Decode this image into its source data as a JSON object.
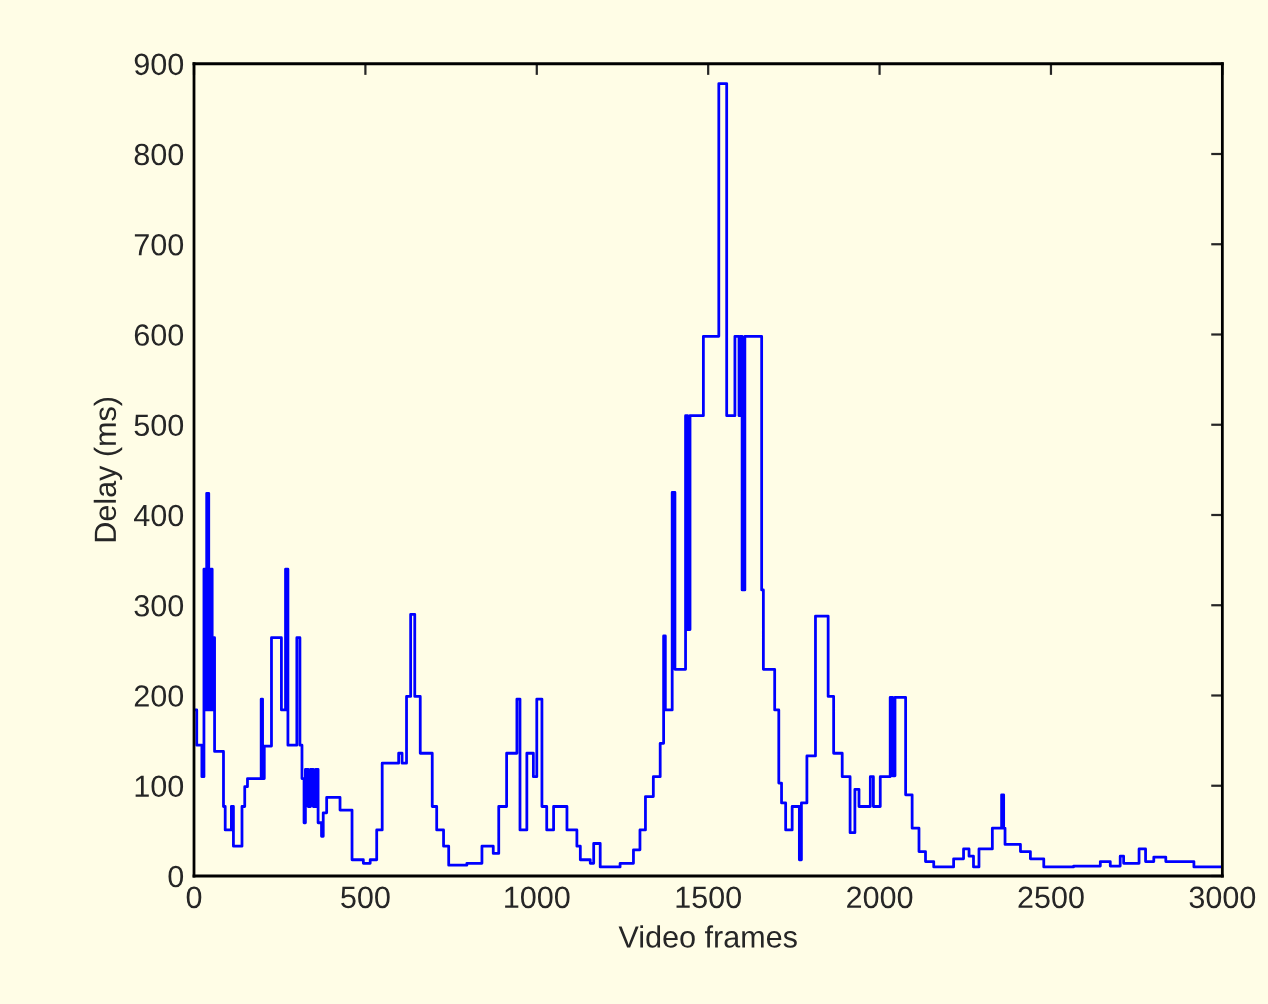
{
  "chart_data": {
    "type": "step",
    "xlabel": "Video frames",
    "ylabel": "Delay (ms)",
    "xlim": [
      0,
      3000
    ],
    "ylim": [
      0,
      900
    ],
    "xticks": [
      0,
      500,
      1000,
      1500,
      2000,
      2500,
      3000
    ],
    "yticks": [
      0,
      100,
      200,
      300,
      400,
      500,
      600,
      700,
      800,
      900
    ],
    "grid": false,
    "legend": false,
    "series": [
      {
        "color": "#0000ff",
        "x": [
          0,
          8,
          23,
          29,
          33,
          37,
          43,
          49,
          53,
          56,
          60,
          86,
          91,
          109,
          115,
          140,
          148,
          156,
          196,
          200,
          205,
          226,
          255,
          267,
          274,
          300,
          309,
          315,
          321,
          325,
          333,
          340,
          348,
          355,
          362,
          372,
          377,
          387,
          426,
          461,
          494,
          514,
          533,
          549,
          597,
          607,
          620,
          632,
          644,
          660,
          695,
          708,
          728,
          743,
          796,
          840,
          873,
          889,
          912,
          942,
          951,
          971,
          990,
          1000,
          1015,
          1029,
          1049,
          1088,
          1117,
          1127,
          1156,
          1166,
          1185,
          1243,
          1282,
          1301,
          1317,
          1340,
          1360,
          1370,
          1375,
          1395,
          1403,
          1434,
          1440,
          1447,
          1486,
          1531,
          1554,
          1578,
          1590,
          1594,
          1599,
          1607,
          1656,
          1661,
          1694,
          1706,
          1714,
          1726,
          1745,
          1766,
          1772,
          1788,
          1813,
          1850,
          1866,
          1891,
          1914,
          1928,
          1940,
          1973,
          1982,
          2002,
          2031,
          2038,
          2045,
          2076,
          2095,
          2115,
          2134,
          2158,
          2216,
          2245,
          2261,
          2274,
          2290,
          2329,
          2356,
          2362,
          2366,
          2411,
          2440,
          2479,
          2566,
          2644,
          2673,
          2702,
          2712,
          2757,
          2776,
          2800,
          2835,
          2917,
          3000
        ],
        "values": [
          184,
          145,
          110,
          340,
          184,
          424,
          184,
          340,
          184,
          264,
          138,
          77,
          51,
          77,
          33,
          77,
          99,
          108,
          196,
          108,
          144,
          264,
          184,
          340,
          145,
          264,
          145,
          108,
          59,
          118,
          77,
          118,
          77,
          118,
          59,
          44,
          70,
          87,
          73,
          18,
          14,
          18,
          51,
          125,
          136,
          125,
          199,
          290,
          199,
          136,
          77,
          51,
          33,
          12,
          14,
          33,
          25,
          77,
          136,
          196,
          51,
          136,
          110,
          196,
          77,
          51,
          77,
          51,
          33,
          18,
          14,
          36,
          10,
          14,
          29,
          51,
          88,
          110,
          147,
          266,
          184,
          425,
          229,
          510,
          273,
          510,
          598,
          878,
          510,
          598,
          510,
          598,
          317,
          598,
          317,
          229,
          184,
          103,
          81,
          51,
          77,
          18,
          81,
          133,
          288,
          199,
          136,
          110,
          48,
          96,
          77,
          110,
          77,
          110,
          198,
          111,
          198,
          90,
          53,
          27,
          16,
          10,
          19,
          30,
          22,
          10,
          30,
          53,
          90,
          53,
          35,
          27,
          19,
          10,
          11,
          16,
          11,
          22,
          14,
          30,
          16,
          21,
          16,
          10,
          10
        ]
      }
    ]
  }
}
